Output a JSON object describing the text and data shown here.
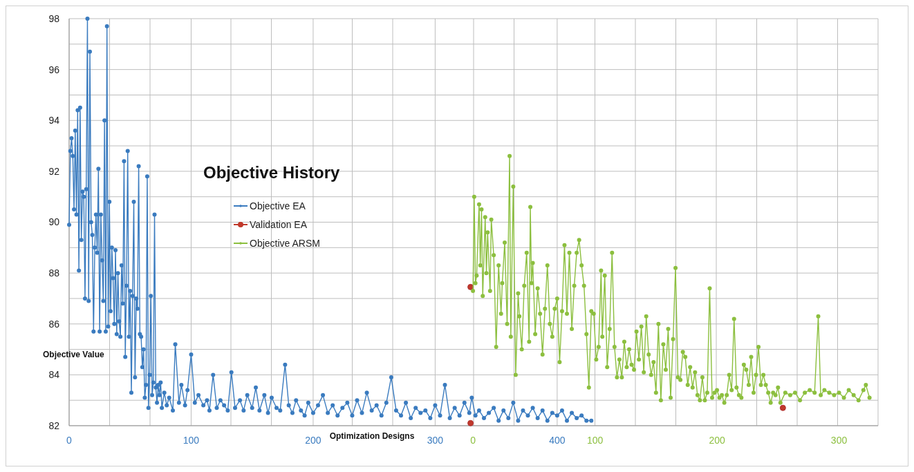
{
  "chart_data": {
    "type": "line",
    "title": "Objective History",
    "xlabel": "Optimization Designs",
    "ylabel": "Objective Value",
    "legend": "left",
    "grid": true,
    "marker": "circle",
    "line_style": "solid",
    "xlim": [
      0,
      663
    ],
    "xticks": [
      0,
      100,
      200,
      300,
      400,
      {
        "value": 33.15,
        "label": null
      },
      {
        "value": 66.3,
        "label": null
      },
      {
        "value": 132.6,
        "label": null
      },
      {
        "value": 165.75,
        "label": null
      },
      {
        "value": 232.05,
        "label": null
      },
      {
        "value": 265.2,
        "label": null
      },
      {
        "value": 331.5,
        "label": null
      },
      {
        "value": 364.65,
        "label": null
      },
      {
        "value": 430.95,
        "label": null
      },
      {
        "value": 464.1,
        "label": null
      },
      {
        "value": 497.25,
        "label": null
      },
      {
        "value": 530.4,
        "label": null
      },
      {
        "value": 563.55,
        "label": null
      },
      {
        "value": 596.7,
        "label": null
      },
      {
        "value": 629.85,
        "label": null
      }
    ],
    "x2lim": [
      -331,
      332
    ],
    "x2ticks": [
      0,
      100,
      200,
      300
    ],
    "ylim": [
      82,
      98
    ],
    "yticks": [
      82,
      84,
      86,
      88,
      90,
      92,
      94,
      96,
      98,
      {
        "value": 83,
        "label": null
      },
      {
        "value": 85,
        "label": null
      },
      {
        "value": 87,
        "label": null
      },
      {
        "value": 89,
        "label": null
      },
      {
        "value": 91,
        "label": null
      },
      {
        "value": 93,
        "label": null
      },
      {
        "value": 95,
        "label": null
      },
      {
        "value": 97,
        "label": null
      }
    ],
    "series": [
      {
        "name": "Objective EA",
        "color": "#3a7bbf",
        "x": [
          0,
          1,
          2,
          3,
          4,
          5,
          6,
          7,
          8,
          9,
          10,
          11,
          12,
          13,
          14,
          15,
          16,
          17,
          18,
          19,
          20,
          21,
          22,
          23,
          24,
          25,
          26,
          27,
          28,
          29,
          30,
          31,
          32,
          33,
          34,
          35,
          36,
          37,
          38,
          39,
          40,
          41,
          42,
          43,
          44,
          45,
          46,
          47,
          48,
          49,
          50,
          51,
          52,
          53,
          54,
          55,
          56,
          57,
          58,
          59,
          60,
          61,
          62,
          63,
          64,
          65,
          66,
          67,
          68,
          69,
          70,
          71,
          72,
          73,
          74,
          75,
          76,
          78,
          80,
          82,
          85,
          87,
          90,
          92,
          95,
          97,
          100,
          103,
          106,
          110,
          113,
          115,
          118,
          121,
          124,
          127,
          130,
          133,
          136,
          140,
          143,
          146,
          150,
          153,
          156,
          160,
          163,
          166,
          170,
          173,
          177,
          180,
          183,
          186,
          190,
          193,
          196,
          200,
          204,
          208,
          212,
          216,
          220,
          224,
          228,
          232,
          236,
          240,
          244,
          248,
          252,
          256,
          260,
          264,
          268,
          272,
          276,
          280,
          284,
          288,
          292,
          296,
          300,
          304,
          308,
          312,
          316,
          320,
          324,
          328,
          330,
          333,
          336,
          340,
          344,
          348,
          352,
          356,
          360,
          364,
          368,
          372,
          376,
          380,
          384,
          388,
          392,
          396,
          400,
          404,
          408,
          412,
          416,
          420,
          424,
          428
        ],
        "values": [
          89.9,
          92.8,
          93.3,
          92.6,
          90.5,
          93.6,
          90.3,
          94.4,
          88.1,
          94.5,
          89.3,
          91.2,
          91.0,
          87.0,
          91.3,
          98.0,
          86.9,
          96.7,
          90.0,
          89.5,
          85.7,
          89.0,
          90.3,
          88.8,
          92.1,
          85.7,
          90.3,
          88.5,
          86.9,
          94.0,
          85.7,
          97.7,
          85.9,
          90.8,
          86.5,
          89.0,
          87.8,
          86.0,
          88.9,
          85.6,
          88.0,
          86.1,
          85.5,
          88.3,
          86.8,
          92.4,
          84.7,
          87.5,
          92.8,
          85.5,
          87.3,
          83.3,
          87.1,
          90.8,
          83.9,
          87.0,
          86.6,
          92.2,
          85.6,
          85.5,
          84.3,
          85.0,
          83.1,
          83.6,
          91.8,
          82.7,
          84.0,
          87.1,
          83.2,
          83.7,
          90.3,
          83.5,
          82.9,
          83.6,
          83.2,
          83.7,
          82.7,
          83.3,
          82.8,
          83.1,
          82.6,
          85.2,
          82.9,
          83.6,
          82.8,
          83.4,
          84.8,
          82.9,
          83.2,
          82.8,
          83.0,
          82.6,
          84.0,
          82.7,
          83.0,
          82.8,
          82.6,
          84.1,
          82.7,
          83.0,
          82.6,
          83.2,
          82.7,
          83.5,
          82.6,
          83.2,
          82.5,
          83.1,
          82.7,
          82.6,
          84.4,
          82.8,
          82.5,
          83.0,
          82.6,
          82.4,
          82.9,
          82.5,
          82.8,
          83.2,
          82.5,
          82.8,
          82.4,
          82.7,
          82.9,
          82.4,
          83.0,
          82.5,
          83.3,
          82.6,
          82.8,
          82.4,
          82.9,
          83.9,
          82.6,
          82.4,
          82.9,
          82.3,
          82.7,
          82.5,
          82.6,
          82.3,
          82.8,
          82.4,
          83.6,
          82.3,
          82.7,
          82.4,
          82.9,
          82.5,
          83.1,
          82.4,
          82.6,
          82.3,
          82.5,
          82.7,
          82.2,
          82.6,
          82.3,
          82.9,
          82.2,
          82.6,
          82.4,
          82.7,
          82.3,
          82.6,
          82.2,
          82.5,
          82.4,
          82.6,
          82.2,
          82.5,
          82.3,
          82.4,
          82.2,
          82.2
        ]
      },
      {
        "name": "Validation EA",
        "color": "#c0392b",
        "type": "scatter",
        "x": [
          329,
          329,
          585
        ],
        "values": [
          87.45,
          82.1,
          82.7
        ]
      },
      {
        "name": "Objective ARSM",
        "color": "#8cbf3f",
        "axis": "x2",
        "x": [
          0,
          1,
          2,
          3,
          5,
          6,
          7,
          8,
          10,
          11,
          12,
          14,
          15,
          17,
          19,
          21,
          23,
          24,
          26,
          28,
          30,
          31,
          33,
          35,
          37,
          38,
          40,
          42,
          44,
          46,
          47,
          48,
          49,
          51,
          53,
          55,
          57,
          59,
          61,
          63,
          65,
          67,
          69,
          71,
          73,
          75,
          77,
          79,
          81,
          83,
          85,
          87,
          89,
          91,
          93,
          95,
          97,
          99,
          101,
          103,
          105,
          106,
          108,
          110,
          112,
          114,
          116,
          118,
          120,
          122,
          124,
          126,
          128,
          130,
          132,
          134,
          136,
          138,
          140,
          142,
          144,
          146,
          148,
          150,
          152,
          154,
          156,
          158,
          160,
          162,
          164,
          166,
          168,
          170,
          172,
          174,
          176,
          178,
          180,
          182,
          184,
          186,
          188,
          190,
          192,
          194,
          196,
          198,
          200,
          202,
          204,
          206,
          208,
          210,
          212,
          214,
          216,
          218,
          220,
          222,
          224,
          226,
          228,
          230,
          232,
          234,
          236,
          238,
          240,
          242,
          244,
          246,
          248,
          250,
          252,
          256,
          260,
          264,
          268,
          272,
          276,
          280,
          283,
          285,
          288,
          292,
          296,
          300,
          304,
          308,
          312,
          316,
          320,
          322,
          325
        ],
        "values": [
          87.3,
          91.0,
          87.6,
          87.9,
          90.7,
          88.3,
          90.5,
          87.1,
          90.2,
          88.0,
          89.6,
          87.3,
          90.1,
          88.7,
          85.1,
          88.3,
          86.4,
          87.6,
          89.2,
          86.0,
          92.6,
          85.5,
          91.4,
          84.0,
          87.2,
          86.3,
          85.0,
          87.5,
          88.8,
          85.3,
          90.6,
          87.6,
          88.4,
          85.6,
          87.4,
          86.4,
          84.8,
          86.6,
          88.3,
          86.0,
          85.5,
          86.6,
          87.0,
          84.5,
          86.5,
          89.1,
          86.4,
          88.8,
          85.8,
          87.5,
          88.8,
          89.3,
          88.3,
          87.5,
          85.6,
          83.5,
          86.5,
          86.4,
          84.6,
          85.1,
          88.1,
          85.5,
          87.9,
          84.3,
          85.8,
          88.8,
          85.1,
          83.9,
          84.6,
          83.9,
          85.3,
          84.3,
          85.0,
          84.4,
          84.2,
          85.7,
          84.6,
          85.9,
          84.1,
          86.3,
          84.8,
          84.0,
          84.5,
          83.3,
          86.0,
          83.0,
          85.2,
          84.2,
          85.8,
          83.1,
          85.4,
          88.2,
          83.9,
          83.8,
          84.9,
          84.7,
          83.6,
          84.3,
          83.5,
          84.1,
          83.2,
          83.0,
          83.9,
          83.0,
          83.3,
          87.4,
          83.1,
          83.3,
          83.4,
          83.1,
          83.2,
          82.9,
          83.2,
          84.0,
          83.4,
          86.2,
          83.5,
          83.2,
          83.1,
          84.4,
          84.2,
          83.6,
          84.7,
          83.3,
          84.0,
          85.1,
          83.6,
          84.0,
          83.6,
          83.3,
          82.9,
          83.3,
          83.2,
          83.5,
          82.9,
          83.3,
          83.2,
          83.3,
          83.0,
          83.3,
          83.4,
          83.3,
          86.3,
          83.2,
          83.4,
          83.3,
          83.2,
          83.3,
          83.1,
          83.4,
          83.2,
          83.0,
          83.4,
          83.6,
          83.1
        ]
      }
    ]
  }
}
